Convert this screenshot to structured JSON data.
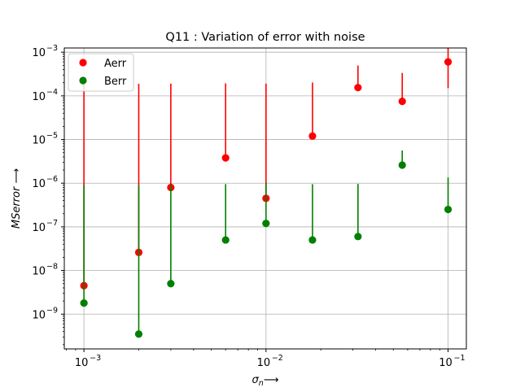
{
  "chart_data": {
    "type": "scatter",
    "title": "Q11 : Variation of error with noise",
    "xlabel": "σ_n ⟶",
    "ylabel": "MSerror ⟶",
    "x_scale": "log",
    "y_scale": "log",
    "xlim": [
      0.00078,
      0.126
    ],
    "ylim": [
      1.6e-10,
      0.00125
    ],
    "x_ticks": [
      0.001,
      0.01,
      0.1
    ],
    "x_tick_labels": [
      {
        "base": "10",
        "exp": "−3"
      },
      {
        "base": "10",
        "exp": "−2"
      },
      {
        "base": "10",
        "exp": "−1"
      }
    ],
    "y_ticks": [
      1e-09,
      1e-08,
      1e-07,
      1e-06,
      1e-05,
      0.0001,
      0.001
    ],
    "y_tick_labels": [
      {
        "base": "10",
        "exp": "−9"
      },
      {
        "base": "10",
        "exp": "−8"
      },
      {
        "base": "10",
        "exp": "−7"
      },
      {
        "base": "10",
        "exp": "−6"
      },
      {
        "base": "10",
        "exp": "−5"
      },
      {
        "base": "10",
        "exp": "−4"
      },
      {
        "base": "10",
        "exp": "−3"
      }
    ],
    "grid": true,
    "legend_position": "top-left",
    "series": [
      {
        "name": "Aerr",
        "color": "#ff0000",
        "x": [
          0.001,
          0.002,
          0.003,
          0.006,
          0.01,
          0.018,
          0.032,
          0.056,
          0.1
        ],
        "y": [
          4.5e-09,
          2.6e-08,
          8e-07,
          3.8e-06,
          4.5e-07,
          1.2e-05,
          0.000155,
          7.5e-05,
          0.0006
        ],
        "yerr_low": [
          1e-12,
          1e-12,
          1e-12,
          1e-12,
          1e-12,
          1e-12,
          1e-12,
          1e-12,
          0.00045
        ],
        "yerr_high": [
          0.00019,
          0.00019,
          0.00019,
          0.00019,
          0.00019,
          0.00019,
          0.00034,
          0.00026,
          0.00075
        ]
      },
      {
        "name": "Berr",
        "color": "#008000",
        "x": [
          0.001,
          0.002,
          0.003,
          0.006,
          0.01,
          0.018,
          0.032,
          0.056,
          0.1
        ],
        "y": [
          1.8e-09,
          3.5e-10,
          5e-09,
          5e-08,
          1.2e-07,
          5e-08,
          6e-08,
          2.6e-06,
          2.5e-07
        ],
        "yerr_low": [
          1e-12,
          1e-12,
          1e-12,
          1e-12,
          1e-12,
          1e-12,
          1e-12,
          1e-12,
          1e-12
        ],
        "yerr_high": [
          9e-07,
          9e-07,
          9e-07,
          9e-07,
          9e-07,
          9e-07,
          9e-07,
          3e-06,
          1.1e-06
        ]
      }
    ]
  }
}
